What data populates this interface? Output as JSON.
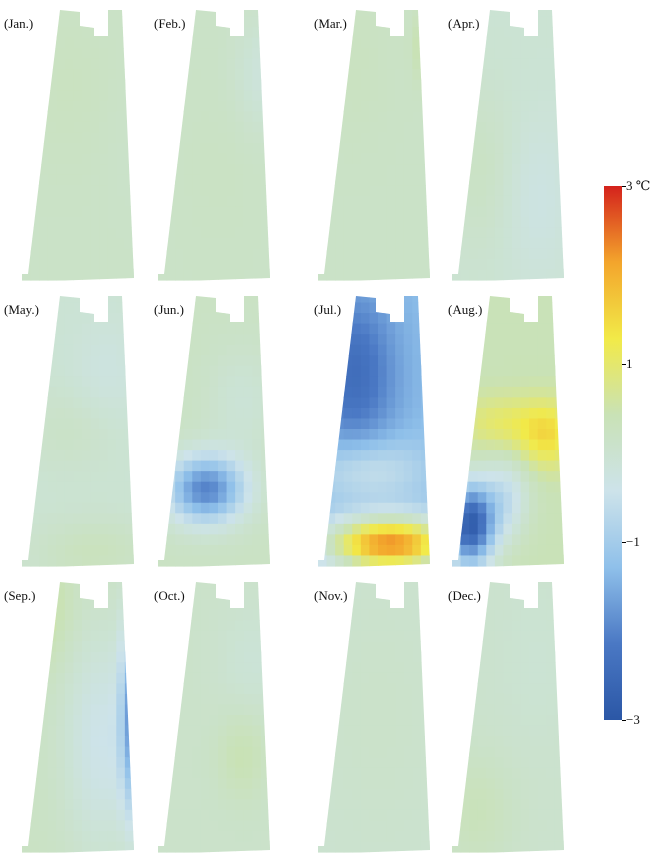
{
  "panels": [
    {
      "label": "(Jan.)",
      "pattern": "jan"
    },
    {
      "label": "(Feb.)",
      "pattern": "feb"
    },
    {
      "label": "(Mar.)",
      "pattern": "mar"
    },
    {
      "label": "(Apr.)",
      "pattern": "apr"
    },
    {
      "label": "(May.)",
      "pattern": "may"
    },
    {
      "label": "(Jun.)",
      "pattern": "jun"
    },
    {
      "label": "(Jul.)",
      "pattern": "jul"
    },
    {
      "label": "(Aug.)",
      "pattern": "aug"
    },
    {
      "label": "(Sep.)",
      "pattern": "sep"
    },
    {
      "label": "(Oct.)",
      "pattern": "oct"
    },
    {
      "label": "(Nov.)",
      "pattern": "nov"
    },
    {
      "label": "(Dec.)",
      "pattern": "dec"
    }
  ],
  "colorbar": {
    "min": -3,
    "max": 3,
    "unit": "℃",
    "ticks": [
      {
        "value": 3,
        "label": "3  ℃"
      },
      {
        "value": 1,
        "label": "1"
      },
      {
        "value": -1,
        "label": "−1"
      },
      {
        "value": -3,
        "label": "−3"
      }
    ],
    "colors": [
      "#2b57a6",
      "#4a78c4",
      "#8fc0ea",
      "#cde3ea",
      "#c9e2b6",
      "#f2ea48",
      "#f3a52c",
      "#d4221c"
    ]
  }
}
